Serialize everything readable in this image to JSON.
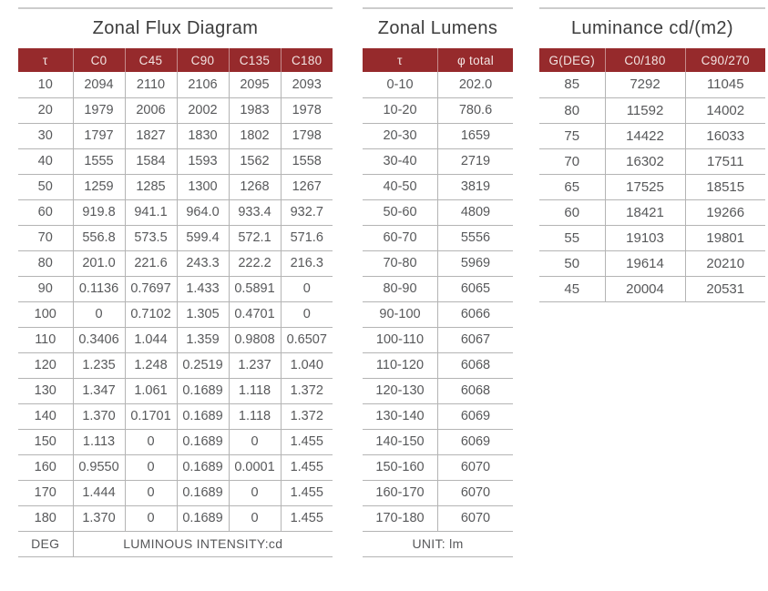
{
  "theme": {
    "header_bg": "#962a2c",
    "header_text": "#f2e4e2",
    "title_text": "#3c3c3c",
    "body_text": "#57585a",
    "grid": "#b4b4b4",
    "rule": "#cccccc"
  },
  "tables": [
    {
      "title": "Zonal Flux Diagram",
      "columns": [
        "τ",
        "C0",
        "C45",
        "C90",
        "C135",
        "C180"
      ],
      "rows": [
        [
          "10",
          "2094",
          "2110",
          "2106",
          "2095",
          "2093"
        ],
        [
          "20",
          "1979",
          "2006",
          "2002",
          "1983",
          "1978"
        ],
        [
          "30",
          "1797",
          "1827",
          "1830",
          "1802",
          "1798"
        ],
        [
          "40",
          "1555",
          "1584",
          "1593",
          "1562",
          "1558"
        ],
        [
          "50",
          "1259",
          "1285",
          "1300",
          "1268",
          "1267"
        ],
        [
          "60",
          "919.8",
          "941.1",
          "964.0",
          "933.4",
          "932.7"
        ],
        [
          "70",
          "556.8",
          "573.5",
          "599.4",
          "572.1",
          "571.6"
        ],
        [
          "80",
          "201.0",
          "221.6",
          "243.3",
          "222.2",
          "216.3"
        ],
        [
          "90",
          "0.1136",
          "0.7697",
          "1.433",
          "0.5891",
          "0"
        ],
        [
          "100",
          "0",
          "0.7102",
          "1.305",
          "0.4701",
          "0"
        ],
        [
          "110",
          "0.3406",
          "1.044",
          "1.359",
          "0.9808",
          "0.6507"
        ],
        [
          "120",
          "1.235",
          "1.248",
          "0.2519",
          "1.237",
          "1.040"
        ],
        [
          "130",
          "1.347",
          "1.061",
          "0.1689",
          "1.118",
          "1.372"
        ],
        [
          "140",
          "1.370",
          "0.1701",
          "0.1689",
          "1.118",
          "1.372"
        ],
        [
          "150",
          "1.113",
          "0",
          "0.1689",
          "0",
          "1.455"
        ],
        [
          "160",
          "0.9550",
          "0",
          "0.1689",
          "0.0001",
          "1.455"
        ],
        [
          "170",
          "1.444",
          "0",
          "0.1689",
          "0",
          "1.455"
        ],
        [
          "180",
          "1.370",
          "0",
          "0.1689",
          "0",
          "1.455"
        ]
      ],
      "footer": {
        "label": "DEG",
        "note": "LUMINOUS INTENSITY:cd"
      }
    },
    {
      "title": "Zonal Lumens",
      "columns": [
        "τ",
        "φ total"
      ],
      "rows": [
        [
          "0-10",
          "202.0"
        ],
        [
          "10-20",
          "780.6"
        ],
        [
          "20-30",
          "1659"
        ],
        [
          "30-40",
          "2719"
        ],
        [
          "40-50",
          "3819"
        ],
        [
          "50-60",
          "4809"
        ],
        [
          "60-70",
          "5556"
        ],
        [
          "70-80",
          "5969"
        ],
        [
          "80-90",
          "6065"
        ],
        [
          "90-100",
          "6066"
        ],
        [
          "100-110",
          "6067"
        ],
        [
          "110-120",
          "6068"
        ],
        [
          "120-130",
          "6068"
        ],
        [
          "130-140",
          "6069"
        ],
        [
          "140-150",
          "6069"
        ],
        [
          "150-160",
          "6070"
        ],
        [
          "160-170",
          "6070"
        ],
        [
          "170-180",
          "6070"
        ]
      ],
      "footer": {
        "note": "UNIT: lm"
      }
    },
    {
      "title": "Luminance cd/(m2)",
      "columns": [
        "G(DEG)",
        "C0/180",
        "C90/270"
      ],
      "rows": [
        [
          "85",
          "7292",
          "11045"
        ],
        [
          "80",
          "11592",
          "14002"
        ],
        [
          "75",
          "14422",
          "16033"
        ],
        [
          "70",
          "16302",
          "17511"
        ],
        [
          "65",
          "17525",
          "18515"
        ],
        [
          "60",
          "18421",
          "19266"
        ],
        [
          "55",
          "19103",
          "19801"
        ],
        [
          "50",
          "19614",
          "20210"
        ],
        [
          "45",
          "20004",
          "20531"
        ]
      ]
    }
  ]
}
